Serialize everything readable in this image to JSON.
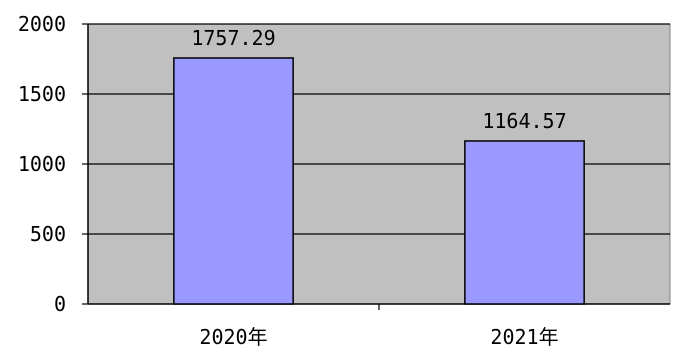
{
  "chart_data": {
    "type": "bar",
    "title": "",
    "xlabel": "",
    "ylabel": "",
    "categories": [
      "2020年",
      "2021年"
    ],
    "values": [
      1757.29,
      1164.57
    ],
    "data_labels": [
      "1757.29",
      "1164.57"
    ],
    "ylim": [
      0,
      2000
    ],
    "yticks": [
      "0",
      "500",
      "1000",
      "1500",
      "2000"
    ],
    "grid": true,
    "legend": "none",
    "colors": {
      "plot_background": "#c0c0c0",
      "bar_fill": "#9999ff",
      "bar_stroke": "#000000",
      "grid": "#000000"
    }
  }
}
